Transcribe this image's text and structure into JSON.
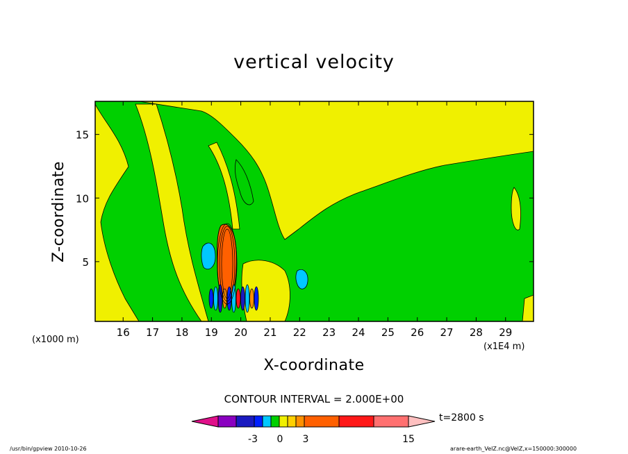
{
  "chart_data": {
    "type": "heatmap",
    "title": "vertical velocity",
    "xlabel": "X-coordinate",
    "ylabel": "Z-coordinate",
    "x_unit_left": "(x1000 m)",
    "x_unit_right": "(x1E4 m)",
    "x_ticks": [
      16,
      17,
      18,
      19,
      20,
      21,
      22,
      23,
      24,
      25,
      26,
      27,
      28,
      29
    ],
    "y_ticks": [
      5,
      10,
      15
    ],
    "xlim": [
      15.05,
      29.95
    ],
    "ylim": [
      0.3,
      17.6
    ],
    "contour_interval_text": "CONTOUR INTERVAL = 2.000E+00",
    "time_text": "t=2800 s",
    "colorbar": {
      "colors": [
        "#e0108a",
        "#8a00c0",
        "#1a1ac0",
        "#0020ff",
        "#00c8ff",
        "#00d000",
        "#f0f000",
        "#ffd000",
        "#ff9000",
        "#ff6000",
        "#ff1818",
        "#ff7070",
        "#ffc0c0"
      ],
      "tick_labels": [
        "-3",
        "0",
        "3",
        "15"
      ],
      "tick_values": [
        -3,
        0,
        3,
        15
      ]
    },
    "colors": {
      "background_green": "#00d000",
      "positive_yellow": "#f0f000",
      "updraft_orange": "#ff6000",
      "downdraft_cyan": "#00c8ff",
      "downdraft_blue": "#0020ff"
    }
  },
  "footer": {
    "left": "/usr/bin/gpview   2010-10-26",
    "right": "arare-earth_VelZ.nc@VelZ,x=150000:300000"
  }
}
